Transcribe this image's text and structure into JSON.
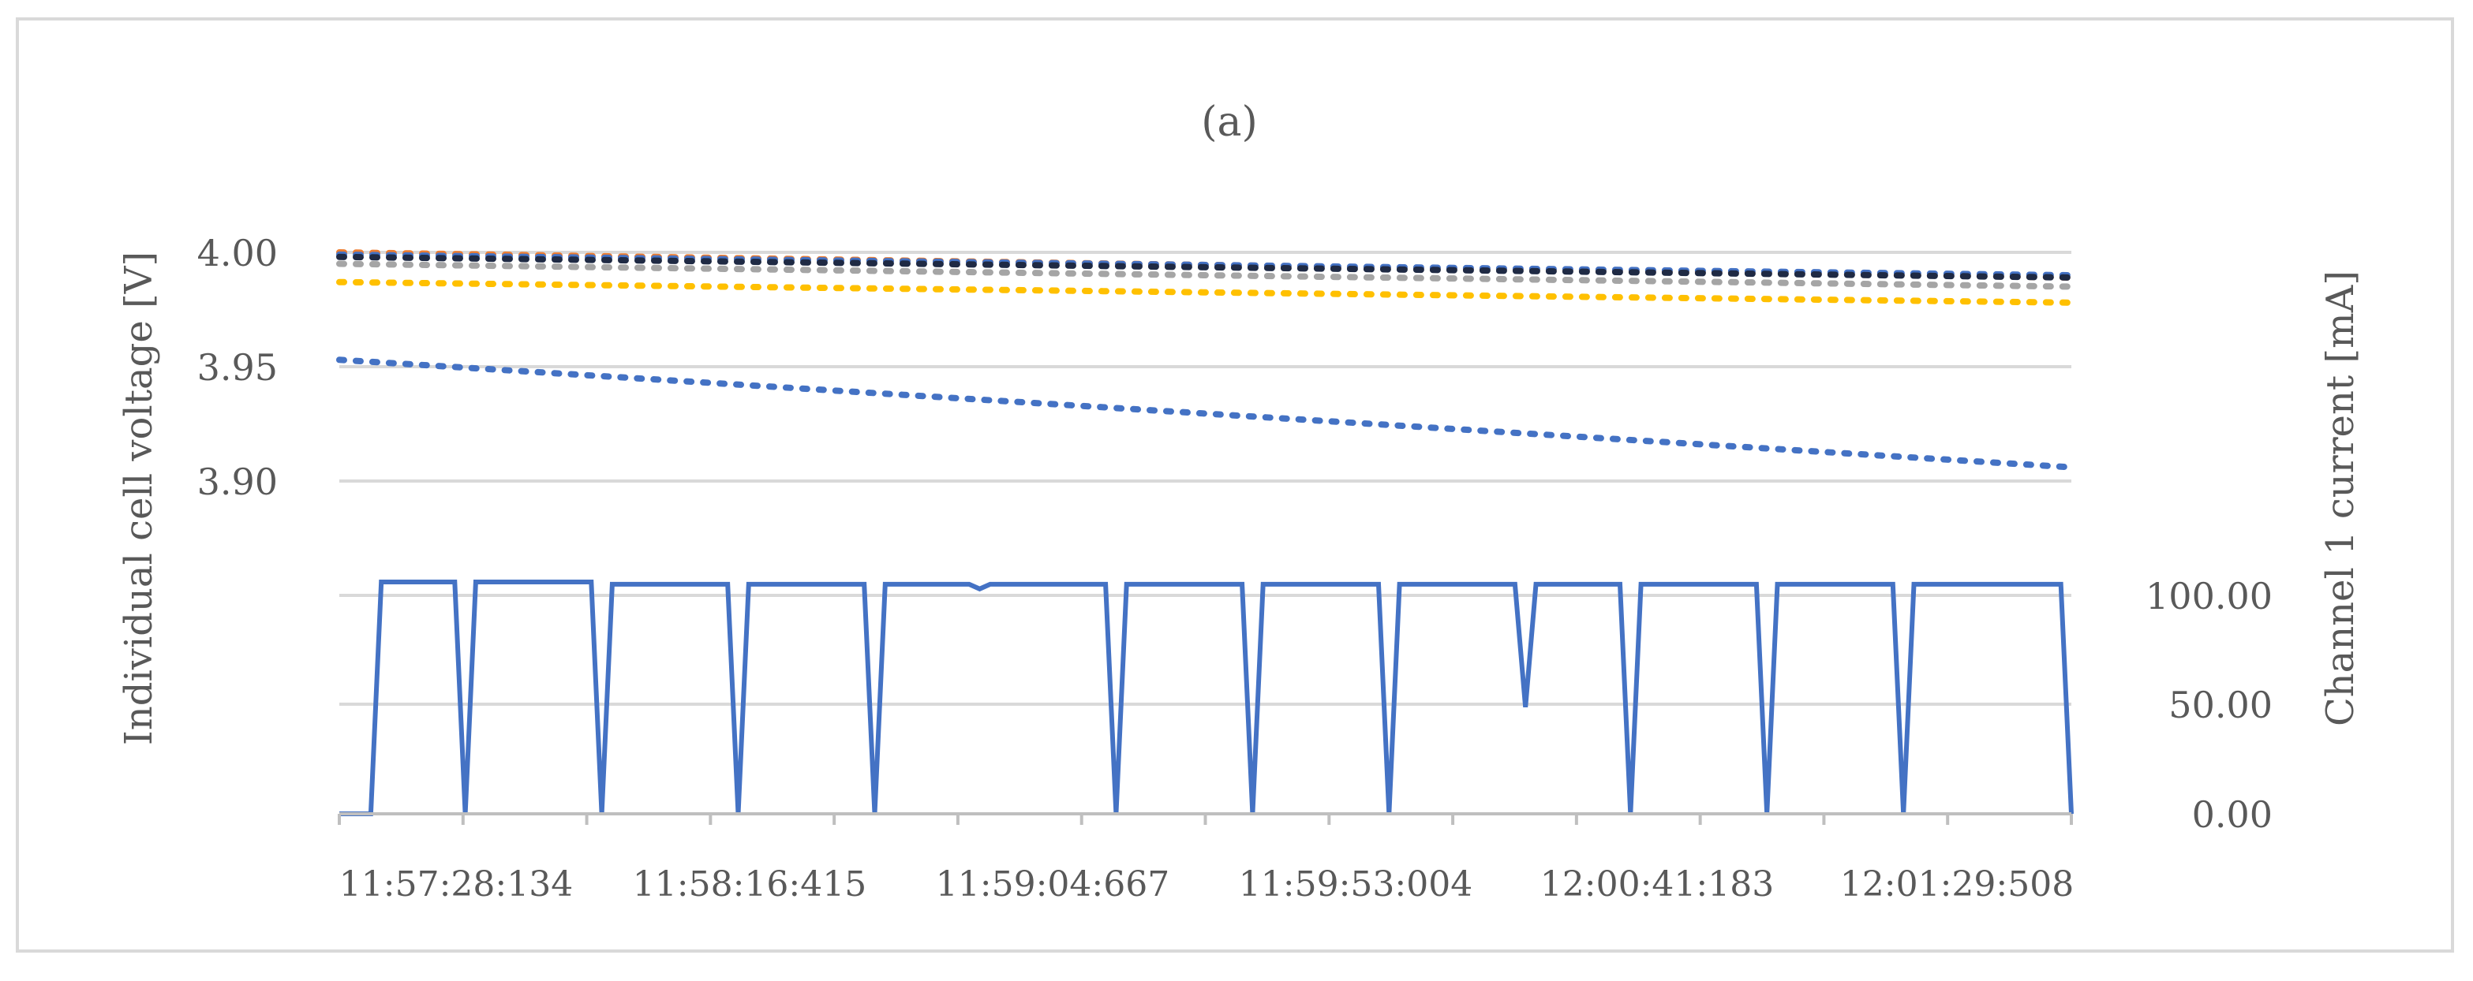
{
  "chart_data": {
    "type": "line",
    "title": "(a)",
    "x_labels": [
      "11:57:28:134",
      "11:58:16:415",
      "11:59:04:667",
      "11:59:53:004",
      "12:00:41:183",
      "12:01:29:508"
    ],
    "y_left": {
      "label": "Individual cell voltage [V]",
      "ticks": [
        "3.90",
        "3.95",
        "4.00"
      ],
      "range": [
        3.85,
        4.02
      ]
    },
    "y_right": {
      "label": "Channel 1 current [mA]",
      "ticks": [
        "0.00",
        "50.00",
        "100.00"
      ],
      "range": [
        0,
        115
      ]
    },
    "grid": true,
    "voltage_series": [
      {
        "style": "dotted",
        "color": "#ed7d31",
        "start": 4.0,
        "end": 3.989
      },
      {
        "style": "dotted",
        "color": "#4472c4",
        "start": 3.999,
        "end": 3.99
      },
      {
        "style": "dotted",
        "color": "#1f2a44",
        "start": 3.998,
        "end": 3.989
      },
      {
        "style": "dotted",
        "color": "#a5a5a5",
        "start": 3.995,
        "end": 3.985
      },
      {
        "style": "dotted",
        "color": "#ffc000",
        "start": 3.987,
        "end": 3.978
      },
      {
        "style": "dotted",
        "color": "#4472c4",
        "start": 3.953,
        "end": 3.906
      }
    ],
    "current_series": {
      "style": "solid",
      "color": "#4472c4",
      "points": [
        [
          0,
          0
        ],
        [
          3,
          0
        ],
        [
          4,
          100
        ],
        [
          11,
          100
        ],
        [
          12,
          0
        ],
        [
          13,
          100
        ],
        [
          24,
          100
        ],
        [
          25,
          0
        ],
        [
          26,
          99
        ],
        [
          37,
          99
        ],
        [
          38,
          0
        ],
        [
          39,
          99
        ],
        [
          50,
          99
        ],
        [
          51,
          0
        ],
        [
          52,
          99
        ],
        [
          60,
          99
        ],
        [
          61,
          97
        ],
        [
          62,
          99
        ],
        [
          73,
          99
        ],
        [
          74,
          0
        ],
        [
          75,
          99
        ],
        [
          86,
          99
        ],
        [
          87,
          0
        ],
        [
          88,
          99
        ],
        [
          99,
          99
        ],
        [
          100,
          0
        ],
        [
          101,
          99
        ],
        [
          112,
          99
        ],
        [
          113,
          46
        ],
        [
          114,
          99
        ],
        [
          122,
          99
        ],
        [
          123,
          0
        ],
        [
          124,
          99
        ],
        [
          135,
          99
        ],
        [
          136,
          0
        ],
        [
          137,
          99
        ],
        [
          148,
          99
        ],
        [
          149,
          0
        ],
        [
          150,
          99
        ],
        [
          164,
          99
        ],
        [
          165,
          0
        ]
      ],
      "x_range": [
        0,
        165
      ]
    }
  }
}
